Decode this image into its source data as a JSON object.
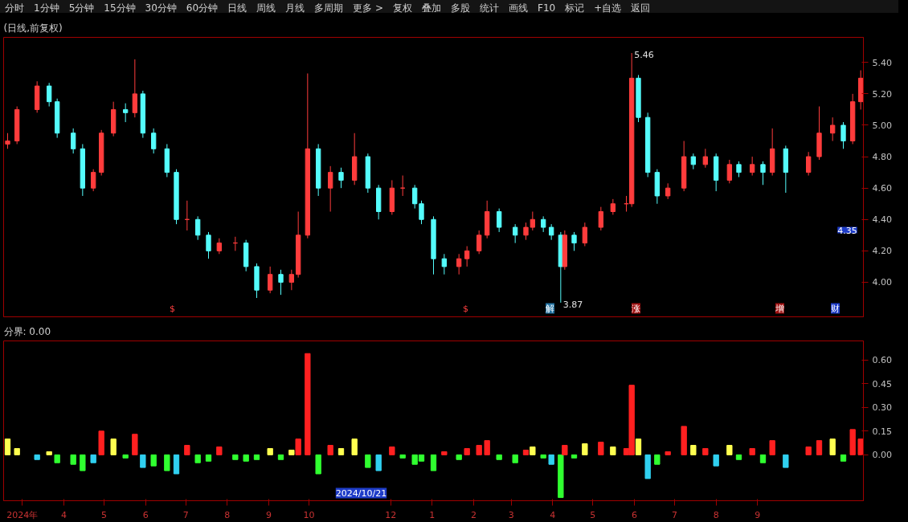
{
  "chart_data": [
    {
      "type": "other",
      "annotations": [
        "分时",
        "1分钟",
        "5分钟",
        "15分钟",
        "30分钟",
        "60分钟",
        "日线",
        "周线",
        "月线",
        "多周期",
        "更多 >",
        "复权",
        "叠加",
        "多股",
        "统计",
        "画线",
        "F10",
        "标记",
        "+自选",
        "返回"
      ]
    },
    {
      "type": "candlestick",
      "title": "(日线,前复权)",
      "tick_labels": "y",
      "grid": false,
      "x": [
        "2024-02-19",
        "2024-02-26",
        "2024-03-12",
        "2024-03-21",
        "2024-03-27",
        "2024-04-08",
        "2024-04-15",
        "2024-04-23",
        "2024-04-29",
        "2024-05-08",
        "2024-05-17",
        "2024-05-24",
        "2024-05-30",
        "2024-06-07",
        "2024-06-17",
        "2024-06-24",
        "2024-07-02",
        "2024-07-10",
        "2024-07-18",
        "2024-07-26",
        "2024-08-07",
        "2024-08-15",
        "2024-08-23",
        "2024-09-02",
        "2024-09-10",
        "2024-09-18",
        "2024-09-23",
        "2024-09-30",
        "2024-10-08",
        "2024-10-17",
        "2024-10-25",
        "2024-11-04",
        "2024-11-14",
        "2024-11-22",
        "2024-12-02",
        "2024-12-10",
        "2024-12-19",
        "2024-12-24",
        "2025-01-02",
        "2025-01-10",
        "2025-01-21",
        "2025-01-27",
        "2025-02-05",
        "2025-02-11",
        "2025-02-20",
        "2025-03-04",
        "2025-03-12",
        "2025-03-17",
        "2025-03-25",
        "2025-03-31",
        "2025-04-07",
        "2025-04-10",
        "2025-04-17",
        "2025-04-25",
        "2025-05-07",
        "2025-05-16",
        "2025-05-26",
        "2025-05-30",
        "2025-06-04",
        "2025-06-11",
        "2025-06-18",
        "2025-06-26",
        "2025-07-08",
        "2025-07-15",
        "2025-07-24",
        "2025-08-01",
        "2025-08-11",
        "2025-08-18",
        "2025-08-28",
        "2025-09-05",
        "2025-09-12",
        "2025-09-22",
        "2025-10-09",
        "2025-10-17",
        "2025-10-27",
        "2025-11-04",
        "2025-11-11",
        "2025-11-17"
      ],
      "ohlc": [
        [
          4.88,
          4.95,
          4.85,
          4.9
        ],
        [
          4.9,
          5.12,
          4.88,
          5.1
        ],
        [
          5.1,
          5.28,
          5.08,
          5.25
        ],
        [
          5.25,
          5.27,
          5.12,
          5.15
        ],
        [
          5.15,
          5.17,
          4.92,
          4.95
        ],
        [
          4.95,
          4.98,
          4.82,
          4.85
        ],
        [
          4.85,
          4.88,
          4.55,
          4.6
        ],
        [
          4.6,
          4.72,
          4.58,
          4.7
        ],
        [
          4.7,
          4.97,
          4.68,
          4.95
        ],
        [
          4.95,
          5.15,
          4.93,
          5.1
        ],
        [
          5.1,
          5.14,
          5.02,
          5.08
        ],
        [
          5.08,
          5.42,
          5.05,
          5.2
        ],
        [
          5.2,
          5.22,
          4.92,
          4.95
        ],
        [
          4.95,
          4.98,
          4.82,
          4.85
        ],
        [
          4.85,
          4.88,
          4.67,
          4.7
        ],
        [
          4.7,
          4.72,
          4.37,
          4.4
        ],
        [
          4.4,
          4.52,
          4.33,
          4.4
        ],
        [
          4.4,
          4.42,
          4.27,
          4.3
        ],
        [
          4.3,
          4.32,
          4.15,
          4.2
        ],
        [
          4.2,
          4.28,
          4.18,
          4.25
        ],
        [
          4.25,
          4.29,
          4.2,
          4.25
        ],
        [
          4.25,
          4.27,
          4.07,
          4.1
        ],
        [
          4.1,
          4.12,
          3.9,
          3.95
        ],
        [
          3.95,
          4.1,
          3.93,
          4.05
        ],
        [
          4.05,
          4.08,
          3.92,
          4.0
        ],
        [
          4.0,
          4.08,
          3.95,
          4.05
        ],
        [
          4.05,
          4.45,
          4.03,
          4.3
        ],
        [
          4.3,
          5.33,
          4.28,
          4.85
        ],
        [
          4.85,
          4.88,
          4.55,
          4.6
        ],
        [
          4.6,
          4.74,
          4.45,
          4.7
        ],
        [
          4.7,
          4.73,
          4.6,
          4.65
        ],
        [
          4.65,
          4.95,
          4.62,
          4.8
        ],
        [
          4.8,
          4.82,
          4.57,
          4.6
        ],
        [
          4.6,
          4.62,
          4.4,
          4.45
        ],
        [
          4.45,
          4.65,
          4.43,
          4.6
        ],
        [
          4.6,
          4.68,
          4.55,
          4.6
        ],
        [
          4.6,
          4.62,
          4.47,
          4.5
        ],
        [
          4.5,
          4.52,
          4.37,
          4.4
        ],
        [
          4.4,
          4.42,
          4.05,
          4.15
        ],
        [
          4.15,
          4.18,
          4.05,
          4.1
        ],
        [
          4.1,
          4.18,
          4.05,
          4.15
        ],
        [
          4.15,
          4.23,
          4.1,
          4.2
        ],
        [
          4.2,
          4.33,
          4.18,
          4.3
        ],
        [
          4.3,
          4.52,
          4.28,
          4.45
        ],
        [
          4.45,
          4.47,
          4.32,
          4.35
        ],
        [
          4.35,
          4.37,
          4.25,
          4.3
        ],
        [
          4.3,
          4.38,
          4.27,
          4.35
        ],
        [
          4.35,
          4.45,
          4.33,
          4.4
        ],
        [
          4.4,
          4.42,
          4.32,
          4.35
        ],
        [
          4.35,
          4.37,
          4.27,
          4.3
        ],
        [
          4.3,
          4.32,
          3.87,
          4.1
        ],
        [
          4.1,
          4.33,
          4.08,
          4.3
        ],
        [
          4.3,
          4.32,
          4.2,
          4.25
        ],
        [
          4.25,
          4.38,
          4.23,
          4.35
        ],
        [
          4.35,
          4.48,
          4.33,
          4.45
        ],
        [
          4.45,
          4.53,
          4.43,
          4.5
        ],
        [
          4.5,
          4.55,
          4.45,
          4.5
        ],
        [
          4.5,
          5.46,
          4.48,
          5.3
        ],
        [
          5.3,
          5.32,
          5.02,
          5.05
        ],
        [
          5.05,
          5.08,
          4.67,
          4.7
        ],
        [
          4.7,
          4.72,
          4.5,
          4.55
        ],
        [
          4.55,
          4.63,
          4.53,
          4.6
        ],
        [
          4.6,
          4.9,
          4.58,
          4.8
        ],
        [
          4.8,
          4.82,
          4.72,
          4.75
        ],
        [
          4.75,
          4.85,
          4.73,
          4.8
        ],
        [
          4.8,
          4.82,
          4.58,
          4.65
        ],
        [
          4.65,
          4.78,
          4.63,
          4.75
        ],
        [
          4.75,
          4.77,
          4.67,
          4.7
        ],
        [
          4.7,
          4.8,
          4.68,
          4.75
        ],
        [
          4.75,
          4.77,
          4.62,
          4.7
        ],
        [
          4.7,
          4.98,
          4.68,
          4.85
        ],
        [
          4.85,
          4.87,
          4.57,
          4.7
        ],
        [
          4.7,
          4.83,
          4.68,
          4.8
        ],
        [
          4.8,
          5.12,
          4.78,
          4.95
        ],
        [
          4.95,
          5.05,
          4.9,
          5.0
        ],
        [
          5.0,
          5.02,
          4.85,
          4.9
        ],
        [
          4.9,
          5.2,
          4.88,
          5.15
        ],
        [
          5.15,
          5.35,
          5.1,
          5.3
        ]
      ],
      "colors": [
        "#ff3c3c",
        "#ff3c3c",
        "#ff3c3c",
        "#54fcfc",
        "#54fcfc",
        "#54fcfc",
        "#54fcfc",
        "#ff3c3c",
        "#ff3c3c",
        "#ff3c3c",
        "#54fcfc",
        "#ff3c3c",
        "#54fcfc",
        "#54fcfc",
        "#54fcfc",
        "#54fcfc",
        "#ff3c3c",
        "#54fcfc",
        "#54fcfc",
        "#ff3c3c",
        "#ff3c3c",
        "#54fcfc",
        "#54fcfc",
        "#ff3c3c",
        "#54fcfc",
        "#ff3c3c",
        "#ff3c3c",
        "#ff3c3c",
        "#54fcfc",
        "#ff3c3c",
        "#54fcfc",
        "#ff3c3c",
        "#54fcfc",
        "#54fcfc",
        "#ff3c3c",
        "#ff3c3c",
        "#54fcfc",
        "#54fcfc",
        "#54fcfc",
        "#54fcfc",
        "#ff3c3c",
        "#ff3c3c",
        "#ff3c3c",
        "#ff3c3c",
        "#54fcfc",
        "#54fcfc",
        "#ff3c3c",
        "#ff3c3c",
        "#54fcfc",
        "#54fcfc",
        "#54fcfc",
        "#ff3c3c",
        "#54fcfc",
        "#ff3c3c",
        "#ff3c3c",
        "#ff3c3c",
        "#ff3c3c",
        "#ff3c3c",
        "#54fcfc",
        "#54fcfc",
        "#54fcfc",
        "#ff3c3c",
        "#ff3c3c",
        "#54fcfc",
        "#ff3c3c",
        "#54fcfc",
        "#ff3c3c",
        "#54fcfc",
        "#ff3c3c",
        "#54fcfc",
        "#ff3c3c",
        "#54fcfc",
        "#ff3c3c",
        "#ff3c3c",
        "#ff3c3c",
        "#54fcfc",
        "#ff3c3c",
        "#ff3c3c"
      ],
      "xlim": [
        "2024-02-16",
        "2025-11-19"
      ],
      "ylim": [
        3.78,
        5.56
      ],
      "yticks": [
        {
          "value": 4.0,
          "label": "4.00"
        },
        {
          "value": 4.2,
          "label": "4.20"
        },
        {
          "value": 4.4,
          "label": "4.40"
        },
        {
          "value": 4.6,
          "label": "4.60"
        },
        {
          "value": 4.8,
          "label": "4.80"
        },
        {
          "value": 5.0,
          "label": "5.00"
        },
        {
          "value": 5.2,
          "label": "5.20"
        },
        {
          "value": 5.4,
          "label": "5.40"
        }
      ],
      "annotations": [
        {
          "text": "5.46",
          "x": "2025-05-30",
          "y": 5.46
        },
        {
          "text": "3.87",
          "x": "2025-04-07",
          "y": 3.87
        },
        "$",
        "$",
        "解",
        "涨",
        "增",
        "财",
        "4.35"
      ]
    },
    {
      "type": "bar",
      "title": "分界: 0.00",
      "grid": false,
      "x": [
        "2024-02-19",
        "2024-02-26",
        "2024-03-12",
        "2024-03-21",
        "2024-03-27",
        "2024-04-08",
        "2024-04-15",
        "2024-04-23",
        "2024-04-29",
        "2024-05-08",
        "2024-05-17",
        "2024-05-24",
        "2024-05-30",
        "2024-06-07",
        "2024-06-17",
        "2024-06-24",
        "2024-07-02",
        "2024-07-10",
        "2024-07-18",
        "2024-07-26",
        "2024-08-07",
        "2024-08-15",
        "2024-08-23",
        "2024-09-02",
        "2024-09-10",
        "2024-09-18",
        "2024-09-23",
        "2024-09-30",
        "2024-10-08",
        "2024-10-17",
        "2024-10-25",
        "2024-11-04",
        "2024-11-14",
        "2024-11-22",
        "2024-12-02",
        "2024-12-10",
        "2024-12-19",
        "2024-12-24",
        "2025-01-02",
        "2025-01-10",
        "2025-01-21",
        "2025-01-27",
        "2025-02-05",
        "2025-02-11",
        "2025-02-20",
        "2025-03-04",
        "2025-03-12",
        "2025-03-17",
        "2025-03-25",
        "2025-03-31",
        "2025-04-07",
        "2025-04-10",
        "2025-04-17",
        "2025-04-25",
        "2025-05-07",
        "2025-05-16",
        "2025-05-26",
        "2025-05-30",
        "2025-06-04",
        "2025-06-11",
        "2025-06-18",
        "2025-06-26",
        "2025-07-08",
        "2025-07-15",
        "2025-07-24",
        "2025-08-01",
        "2025-08-11",
        "2025-08-18",
        "2025-08-28",
        "2025-09-05",
        "2025-09-12",
        "2025-09-22",
        "2025-10-09",
        "2025-10-17",
        "2025-10-27",
        "2025-11-04",
        "2025-11-11",
        "2025-11-17"
      ],
      "values": [
        0.1,
        0.04,
        -0.03,
        0.02,
        -0.05,
        -0.06,
        -0.1,
        -0.05,
        0.15,
        0.1,
        -0.02,
        0.13,
        -0.08,
        -0.07,
        -0.1,
        -0.12,
        0.06,
        -0.05,
        -0.04,
        0.05,
        -0.03,
        -0.04,
        -0.03,
        0.04,
        -0.03,
        0.03,
        0.1,
        0.64,
        -0.12,
        0.06,
        0.04,
        0.1,
        -0.08,
        -0.1,
        0.05,
        -0.02,
        -0.06,
        -0.04,
        -0.1,
        0.02,
        -0.03,
        0.04,
        0.06,
        0.09,
        -0.03,
        -0.05,
        0.03,
        0.05,
        -0.02,
        -0.06,
        -0.27,
        0.06,
        -0.02,
        0.07,
        0.08,
        0.05,
        0.04,
        0.44,
        0.1,
        -0.15,
        -0.06,
        0.02,
        0.18,
        0.06,
        0.04,
        -0.07,
        0.06,
        -0.03,
        0.04,
        -0.05,
        0.09,
        -0.08,
        0.05,
        0.09,
        0.1,
        -0.04,
        0.16,
        0.1
      ],
      "colors": [
        "#ffff50",
        "#ffff50",
        "#30d0f0",
        "#ffff50",
        "#30ff30",
        "#30ff30",
        "#30ff30",
        "#30d0f0",
        "#ff2020",
        "#ffff50",
        "#30ff30",
        "#ff2020",
        "#30d0f0",
        "#30ff30",
        "#30ff30",
        "#30d0f0",
        "#ff2020",
        "#30ff30",
        "#30ff30",
        "#ff2020",
        "#30ff30",
        "#30ff30",
        "#30ff30",
        "#ffff50",
        "#30ff30",
        "#ffff50",
        "#ff2020",
        "#ff2020",
        "#30ff30",
        "#ff2020",
        "#ffff50",
        "#ffff50",
        "#30ff30",
        "#30d0f0",
        "#ff2020",
        "#30ff30",
        "#30ff30",
        "#30ff30",
        "#30ff30",
        "#ff2020",
        "#30ff30",
        "#ff2020",
        "#ff2020",
        "#ff2020",
        "#30ff30",
        "#30ff30",
        "#ff2020",
        "#ffff50",
        "#30ff30",
        "#30d0f0",
        "#30ff30",
        "#ff2020",
        "#30ff30",
        "#ffff50",
        "#ff2020",
        "#ffff50",
        "#ff2020",
        "#ff2020",
        "#ffff50",
        "#30d0f0",
        "#30ff30",
        "#ff2020",
        "#ff2020",
        "#ffff50",
        "#ff2020",
        "#30d0f0",
        "#ffff50",
        "#30ff30",
        "#ff2020",
        "#30ff30",
        "#ff2020",
        "#30d0f0",
        "#ff2020",
        "#ff2020",
        "#ffff50",
        "#30ff30",
        "#ff2020",
        "#ff2020"
      ],
      "xlim": [
        "2024-02-16",
        "2025-11-19"
      ],
      "ylim": [
        -0.29,
        0.72
      ],
      "yticks": [
        {
          "value": 0,
          "label": "0.00"
        },
        {
          "value": 0.15,
          "label": "0.15"
        },
        {
          "value": 0.3,
          "label": "0.30"
        },
        {
          "value": 0.45,
          "label": "0.45"
        },
        {
          "value": 0.6,
          "label": "0.60"
        }
      ],
      "xticks": [
        {
          "value": "2024-03-01",
          "label": "2024年"
        },
        {
          "value": "2024-04-01",
          "label": "4"
        },
        {
          "value": "2024-05-01",
          "label": "5"
        },
        {
          "value": "2024-06-01",
          "label": "6"
        },
        {
          "value": "2024-07-01",
          "label": "7"
        },
        {
          "value": "2024-08-01",
          "label": "8"
        },
        {
          "value": "2024-09-01",
          "label": "9"
        },
        {
          "value": "2024-10-01",
          "label": "10"
        },
        {
          "value": "2024-12-01",
          "label": "12"
        },
        {
          "value": "2025-01-01",
          "label": "1"
        },
        {
          "value": "2025-02-01",
          "label": "2"
        },
        {
          "value": "2025-03-01",
          "label": "3"
        },
        {
          "value": "2025-04-01",
          "label": "4"
        },
        {
          "value": "2025-05-01",
          "label": "5"
        },
        {
          "value": "2025-06-01",
          "label": "6"
        },
        {
          "value": "2025-07-01",
          "label": "7"
        },
        {
          "value": "2025-08-01",
          "label": "8"
        },
        {
          "value": "2025-09-01",
          "label": "9"
        }
      ],
      "annotations": [
        "2024/10/21"
      ]
    }
  ]
}
